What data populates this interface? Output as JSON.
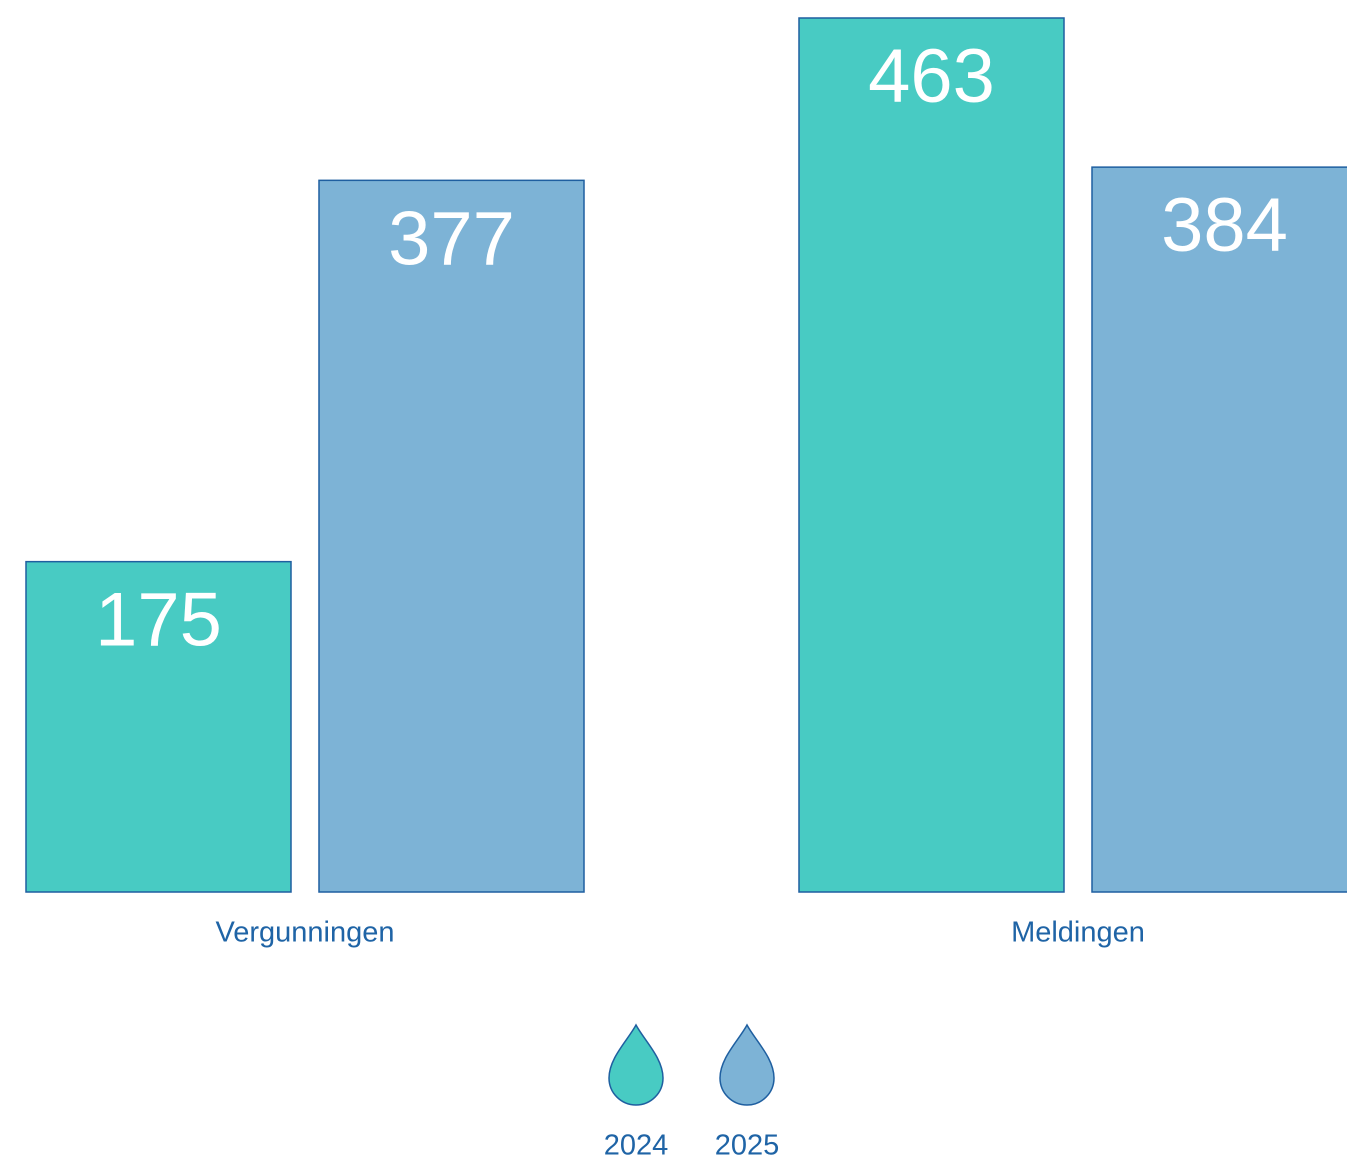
{
  "chart_data": {
    "type": "bar",
    "categories": [
      "Vergunningen",
      "Meldingen"
    ],
    "series": [
      {
        "name": "2024",
        "color": "#48cbc3",
        "values": [
          175,
          463
        ]
      },
      {
        "name": "2025",
        "color": "#7db3d6",
        "values": [
          377,
          384
        ]
      }
    ]
  }
}
